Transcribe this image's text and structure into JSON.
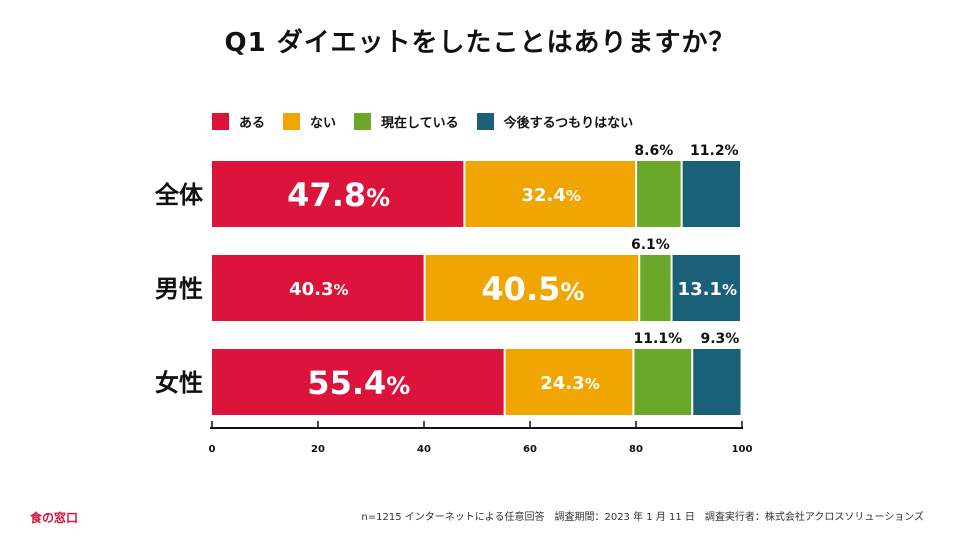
{
  "colors": {
    "aru": "#dc143c",
    "nai": "#f0a500",
    "genzai": "#6aa829",
    "kongo": "#1a6078",
    "axis": "#111111"
  },
  "chart_data": {
    "type": "bar",
    "orientation": "horizontal",
    "stacked": true,
    "title": "Q1 ダイエットをしたことはありますか？",
    "categories": [
      "全体",
      "男性",
      "女性"
    ],
    "series": [
      {
        "name": "ある",
        "color": "#dc143c",
        "values": [
          47.8,
          40.3,
          55.4
        ]
      },
      {
        "name": "ない",
        "color": "#f0a500",
        "values": [
          32.4,
          40.5,
          24.3
        ]
      },
      {
        "name": "現在している",
        "color": "#6aa829",
        "values": [
          8.6,
          6.1,
          11.1
        ]
      },
      {
        "name": "今後するつもりはない",
        "color": "#1a6078",
        "values": [
          11.2,
          13.1,
          9.3
        ]
      }
    ],
    "xlim": [
      0,
      100
    ],
    "xticks": [
      0,
      20,
      40,
      60,
      80,
      100
    ],
    "value_suffix": "%",
    "legend_position": "top-left"
  },
  "footer": {
    "brand": "食の窓口",
    "note": "n=1215 インターネットによる任意回答　調査期間：2023 年 1 月 11 日　調査実行者：株式会社アクロスソリューションズ"
  }
}
